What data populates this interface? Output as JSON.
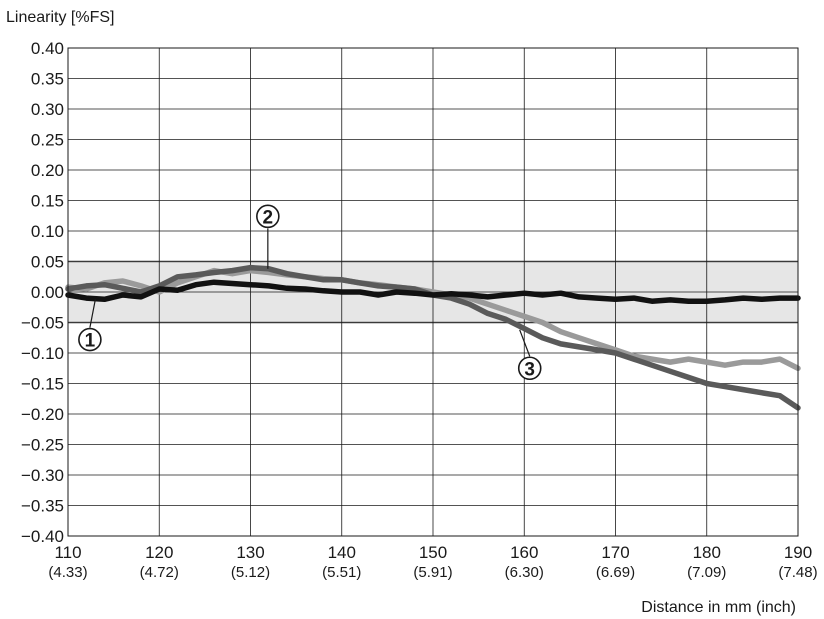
{
  "chart_data": {
    "type": "line",
    "ylabel": "Linearity [%FS]",
    "xlabel": "Distance in mm (inch)",
    "xlim": [
      110,
      190
    ],
    "ylim": [
      -0.4,
      0.4
    ],
    "y_ticks": [
      0.4,
      0.35,
      0.3,
      0.25,
      0.2,
      0.15,
      0.1,
      0.05,
      0.0,
      -0.05,
      -0.1,
      -0.15,
      -0.2,
      -0.25,
      -0.3,
      -0.35,
      -0.4
    ],
    "y_tick_labels": [
      "0.40",
      "0.35",
      "0.30",
      "0.25",
      "0.20",
      "0.15",
      "0.10",
      "0.05",
      "0.00",
      "−0.05",
      "−0.10",
      "−0.15",
      "−0.20",
      "−0.25",
      "−0.30",
      "−0.35",
      "−0.40"
    ],
    "x_ticks": [
      110,
      120,
      130,
      140,
      150,
      160,
      170,
      180,
      190
    ],
    "x_tick_labels": [
      "110",
      "120",
      "130",
      "140",
      "150",
      "160",
      "170",
      "180",
      "190"
    ],
    "x_sub_labels": [
      "(4.33)",
      "(4.72)",
      "(5.12)",
      "(5.51)",
      "(5.91)",
      "(6.30)",
      "(6.69)",
      "(7.09)",
      "(7.48)"
    ],
    "tolerance_band": [
      -0.05,
      0.05
    ],
    "grid": true,
    "series": [
      {
        "marker": "1",
        "color": "#111111",
        "x": [
          110,
          112,
          114,
          116,
          118,
          120,
          122,
          124,
          126,
          128,
          130,
          132,
          134,
          136,
          138,
          140,
          142,
          144,
          146,
          148,
          150,
          152,
          154,
          156,
          158,
          160,
          162,
          164,
          166,
          168,
          170,
          172,
          174,
          176,
          178,
          180,
          182,
          184,
          186,
          188,
          190
        ],
        "y": [
          -0.005,
          -0.01,
          -0.012,
          -0.005,
          -0.008,
          0.005,
          0.003,
          0.012,
          0.016,
          0.014,
          0.012,
          0.01,
          0.006,
          0.005,
          0.002,
          0.0,
          0.0,
          -0.005,
          0.0,
          -0.002,
          -0.005,
          -0.003,
          -0.005,
          -0.008,
          -0.005,
          -0.002,
          -0.005,
          -0.002,
          -0.008,
          -0.01,
          -0.012,
          -0.01,
          -0.015,
          -0.013,
          -0.015,
          -0.015,
          -0.013,
          -0.01,
          -0.012,
          -0.01,
          -0.01
        ]
      },
      {
        "marker": "2",
        "color": "#9a9a9a",
        "x": [
          110,
          112,
          114,
          116,
          118,
          120,
          122,
          124,
          126,
          128,
          130,
          132,
          134,
          136,
          138,
          140,
          142,
          144,
          146,
          148,
          150,
          152,
          154,
          156,
          158,
          160,
          162,
          164,
          166,
          168,
          170,
          172,
          174,
          176,
          178,
          180,
          182,
          184,
          186,
          188,
          190
        ],
        "y": [
          0.008,
          0.005,
          0.015,
          0.018,
          0.01,
          0.0,
          0.015,
          0.025,
          0.035,
          0.03,
          0.035,
          0.032,
          0.028,
          0.025,
          0.022,
          0.02,
          0.015,
          0.012,
          0.008,
          0.005,
          0.0,
          -0.005,
          -0.01,
          -0.02,
          -0.03,
          -0.04,
          -0.05,
          -0.065,
          -0.075,
          -0.085,
          -0.095,
          -0.105,
          -0.11,
          -0.115,
          -0.11,
          -0.115,
          -0.12,
          -0.115,
          -0.115,
          -0.11,
          -0.125
        ]
      },
      {
        "marker": "3",
        "color": "#5a5a5a",
        "x": [
          110,
          112,
          114,
          116,
          118,
          120,
          122,
          124,
          126,
          128,
          130,
          132,
          134,
          136,
          138,
          140,
          142,
          144,
          146,
          148,
          150,
          152,
          154,
          156,
          158,
          160,
          162,
          164,
          166,
          168,
          170,
          172,
          174,
          176,
          178,
          180,
          182,
          184,
          186,
          188,
          190
        ],
        "y": [
          0.005,
          0.01,
          0.012,
          0.006,
          0.0,
          0.01,
          0.025,
          0.028,
          0.032,
          0.035,
          0.04,
          0.038,
          0.03,
          0.025,
          0.02,
          0.02,
          0.015,
          0.01,
          0.008,
          0.005,
          -0.005,
          -0.01,
          -0.02,
          -0.035,
          -0.045,
          -0.06,
          -0.075,
          -0.085,
          -0.09,
          -0.095,
          -0.1,
          -0.11,
          -0.12,
          -0.13,
          -0.14,
          -0.15,
          -0.155,
          -0.16,
          -0.165,
          -0.17,
          -0.19
        ]
      }
    ],
    "annotations": [
      {
        "text": "1",
        "series": "1"
      },
      {
        "text": "2",
        "series": "2"
      },
      {
        "text": "3",
        "series": "3"
      }
    ]
  }
}
